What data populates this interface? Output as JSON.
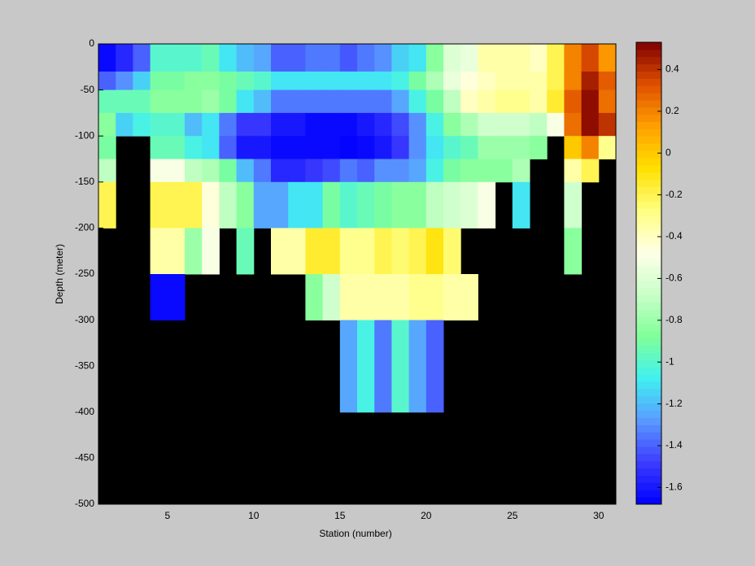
{
  "chart_data": {
    "type": "heatmap",
    "xlabel": "Station (number)",
    "ylabel": "Depth (meter)",
    "x_edges": [
      1,
      2,
      3,
      4,
      5,
      6,
      7,
      8,
      9,
      10,
      11,
      12,
      13,
      14,
      15,
      16,
      17,
      18,
      19,
      20,
      21,
      22,
      23,
      24,
      25,
      26,
      27,
      28,
      29,
      30,
      31
    ],
    "y_edges": [
      0,
      -30,
      -50,
      -75,
      -100,
      -125,
      -150,
      -200,
      -250,
      -300,
      -400
    ],
    "z": [
      [
        -1.65,
        -1.55,
        -1.4,
        -1.0,
        -1.0,
        -1.0,
        -0.95,
        -1.1,
        -1.2,
        -1.25,
        -1.4,
        -1.4,
        -1.35,
        -1.35,
        -1.42,
        -1.35,
        -1.3,
        -1.15,
        -1.1,
        -0.85,
        -0.6,
        -0.55,
        -0.35,
        -0.35,
        -0.35,
        -0.4,
        -0.2,
        0.2,
        0.35,
        0.15
      ],
      [
        -1.4,
        -1.3,
        -1.15,
        -0.9,
        -0.9,
        -0.85,
        -0.85,
        -0.9,
        -0.95,
        -1.0,
        -1.1,
        -1.1,
        -1.1,
        -1.1,
        -1.1,
        -1.1,
        -1.1,
        -1.05,
        -0.9,
        -0.75,
        -0.55,
        -0.45,
        -0.4,
        -0.35,
        -0.35,
        -0.35,
        -0.2,
        0.2,
        0.45,
        0.3
      ],
      [
        -0.95,
        -0.95,
        -0.95,
        -0.85,
        -0.85,
        -0.85,
        -0.8,
        -0.9,
        -1.1,
        -1.2,
        -1.35,
        -1.35,
        -1.35,
        -1.35,
        -1.35,
        -1.35,
        -1.35,
        -1.25,
        -1.05,
        -0.9,
        -0.7,
        -0.4,
        -0.35,
        -0.3,
        -0.3,
        -0.35,
        -0.15,
        0.3,
        0.5,
        0.25
      ],
      [
        -0.85,
        -1.15,
        -1.05,
        -1.0,
        -1.0,
        -1.2,
        -1.1,
        -1.35,
        -1.5,
        -1.5,
        -1.6,
        -1.6,
        -1.65,
        -1.65,
        -1.65,
        -1.6,
        -1.55,
        -1.45,
        -1.3,
        -1.05,
        -0.85,
        -0.75,
        -0.65,
        -0.65,
        -0.65,
        -0.7,
        -0.5,
        0.25,
        0.5,
        0.4
      ],
      [
        -0.9,
        null,
        null,
        -0.95,
        -0.95,
        -1.05,
        -1.1,
        -1.4,
        -1.6,
        -1.6,
        -1.65,
        -1.65,
        -1.65,
        -1.65,
        -1.67,
        -1.65,
        -1.6,
        -1.5,
        -1.3,
        -1.1,
        -1.0,
        -0.95,
        -0.8,
        -0.8,
        -0.8,
        -0.85,
        null,
        0.0,
        0.2,
        -0.3
      ],
      [
        -0.7,
        null,
        null,
        -0.5,
        -0.5,
        -0.7,
        -0.75,
        -0.9,
        -1.2,
        -1.35,
        -1.55,
        -1.55,
        -1.5,
        -1.45,
        -1.35,
        -1.4,
        -1.3,
        -1.3,
        -1.25,
        -1.05,
        -0.9,
        -0.85,
        -0.85,
        -0.85,
        -0.75,
        null,
        null,
        -0.35,
        -0.2,
        null
      ],
      [
        -0.2,
        null,
        null,
        -0.2,
        -0.2,
        -0.2,
        -0.45,
        -0.7,
        -0.85,
        -1.25,
        -1.25,
        -1.1,
        -1.1,
        -0.9,
        -1.0,
        -0.95,
        -0.9,
        -0.85,
        -0.85,
        -0.7,
        -0.65,
        -0.6,
        -0.5,
        null,
        -1.1,
        null,
        null,
        -0.65,
        null,
        null
      ],
      [
        null,
        null,
        null,
        -0.35,
        -0.35,
        -0.8,
        -0.5,
        null,
        -0.95,
        null,
        -0.35,
        -0.35,
        -0.15,
        -0.15,
        -0.3,
        -0.3,
        -0.2,
        -0.25,
        -0.2,
        -0.1,
        -0.25,
        null,
        null,
        null,
        null,
        null,
        null,
        -0.85,
        null,
        null
      ],
      [
        null,
        null,
        null,
        -1.65,
        -1.65,
        null,
        null,
        null,
        null,
        null,
        null,
        null,
        -0.85,
        -0.65,
        -0.35,
        -0.35,
        -0.35,
        -0.35,
        -0.3,
        -0.3,
        -0.35,
        -0.35,
        null,
        null,
        null,
        null,
        null,
        null,
        null,
        null
      ],
      [
        null,
        null,
        null,
        null,
        null,
        null,
        null,
        null,
        null,
        null,
        null,
        null,
        null,
        null,
        -1.25,
        -1.05,
        -1.35,
        -1.0,
        -1.25,
        -1.4,
        null,
        null,
        null,
        null,
        null,
        null,
        null,
        null,
        null,
        null
      ]
    ],
    "xlim": [
      1,
      31
    ],
    "ylim": [
      -500,
      0
    ],
    "xticks": [
      5,
      10,
      15,
      20,
      25,
      30
    ],
    "yticks": [
      0,
      -50,
      -100,
      -150,
      -200,
      -250,
      -300,
      -350,
      -400,
      -450,
      -500
    ],
    "clim": [
      -1.68,
      0.53
    ],
    "cticks": [
      0.4,
      0.2,
      0,
      -0.2,
      -0.4,
      -0.6,
      -0.8,
      -1,
      -1.2,
      -1.4,
      -1.6
    ],
    "colormap": [
      "#0000ff",
      "#3c3cff",
      "#5a9bff",
      "#40f0f0",
      "#80ff98",
      "#c8ffc8",
      "#ffffe8",
      "#ffff80",
      "#ffe000",
      "#ffa000",
      "#e05000",
      "#800000"
    ],
    "missing_color": "#000000"
  }
}
